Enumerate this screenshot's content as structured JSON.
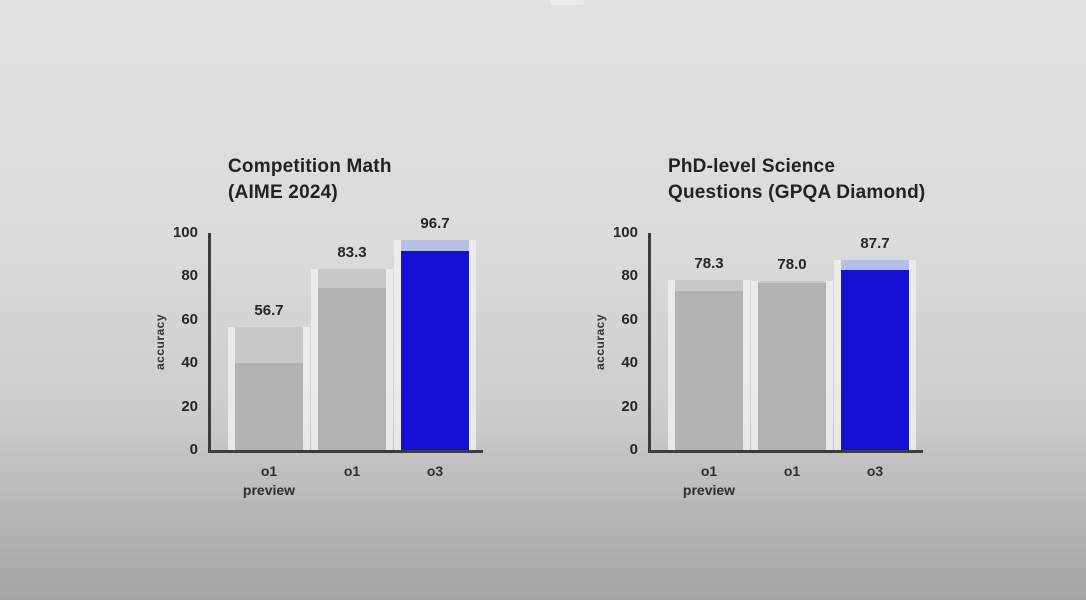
{
  "background": {
    "top": "#e1e1e1",
    "bottom": "#a4a4a4"
  },
  "colors": {
    "bar_gray": "#b2b2b2",
    "bar_gray_cap": "#c8c8c8",
    "bar_blue": "#1410d6",
    "bar_blue_cap": "#b6c0e7",
    "bar_gutter": "#ececec",
    "axis": "#3d3d3d",
    "text": "#252525"
  },
  "chart_data": [
    {
      "type": "bar",
      "title": "Competition Math (AIME 2024)",
      "title_lines": [
        "Competition Math",
        "(AIME 2024)"
      ],
      "ylabel": "accuracy",
      "ylim": [
        0,
        100
      ],
      "yticks": [
        0,
        20,
        40,
        60,
        80,
        100
      ],
      "grid": false,
      "legend": null,
      "categories": [
        "o1 preview",
        "o1",
        "o3"
      ],
      "category_lines": [
        [
          "o1",
          "preview"
        ],
        [
          "o1"
        ],
        [
          "o3"
        ]
      ],
      "series": [
        {
          "name": "solid_segment_top",
          "values": [
            40.0,
            74.4,
            91.6
          ]
        },
        {
          "name": "labeled_total",
          "values": [
            56.7,
            83.3,
            96.7
          ]
        }
      ],
      "value_labels": [
        "56.7",
        "83.3",
        "96.7"
      ],
      "bar_variants": [
        "gray",
        "gray",
        "blue"
      ]
    },
    {
      "type": "bar",
      "title": "PhD-level Science Questions (GPQA Diamond)",
      "title_lines": [
        "PhD-level Science",
        "Questions (GPQA Diamond)"
      ],
      "ylabel": "accuracy",
      "ylim": [
        0,
        100
      ],
      "yticks": [
        0,
        20,
        40,
        60,
        80,
        100
      ],
      "grid": false,
      "legend": null,
      "categories": [
        "o1 preview",
        "o1",
        "o3"
      ],
      "category_lines": [
        [
          "o1",
          "preview"
        ],
        [
          "o1"
        ],
        [
          "o3"
        ]
      ],
      "series": [
        {
          "name": "solid_segment_top",
          "values": [
            73.3,
            77.3,
            83.3
          ]
        },
        {
          "name": "labeled_total",
          "values": [
            78.3,
            78.0,
            87.7
          ]
        }
      ],
      "value_labels": [
        "78.3",
        "78.0",
        "87.7"
      ],
      "bar_variants": [
        "gray",
        "gray",
        "blue"
      ]
    }
  ]
}
